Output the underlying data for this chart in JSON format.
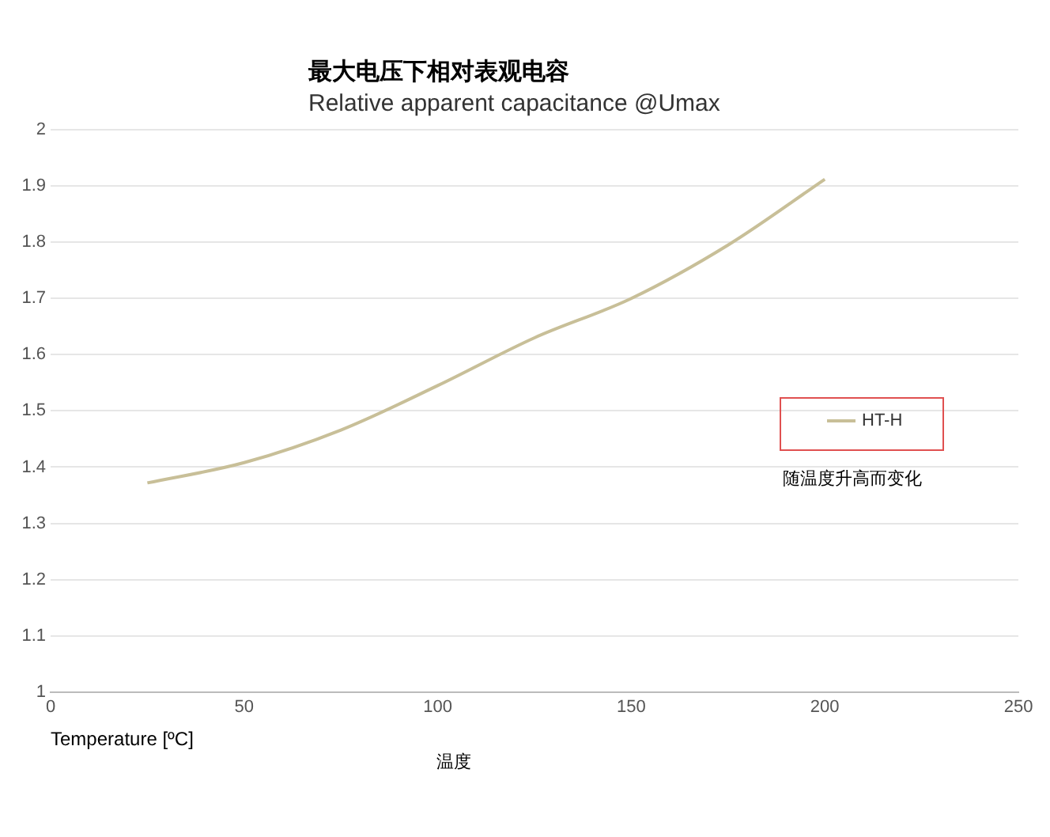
{
  "chart_data": {
    "type": "line",
    "title": "最大电压下相对表观电容",
    "subtitle": "Relative  apparent capacitance @Umax",
    "xlabel": "Temperature [ºC]",
    "annotations": [
      "随温度升高而变化",
      "温度"
    ],
    "x": [
      25,
      50,
      75,
      100,
      125,
      150,
      175,
      200
    ],
    "series": [
      {
        "name": "HT-H",
        "color": "#c8bf98",
        "values": [
          1.372,
          1.408,
          1.466,
          1.545,
          1.63,
          1.7,
          1.795,
          1.912
        ]
      }
    ],
    "xlim": [
      0,
      250
    ],
    "xticks": [
      0,
      50,
      100,
      150,
      200,
      250
    ],
    "ylim": [
      1,
      2
    ],
    "yticks": [
      1,
      1.1,
      1.2,
      1.3,
      1.4,
      1.5,
      1.6,
      1.7,
      1.8,
      1.9,
      2
    ],
    "grid": "y",
    "legend": "right",
    "marker": "none",
    "line_style": "solid"
  }
}
